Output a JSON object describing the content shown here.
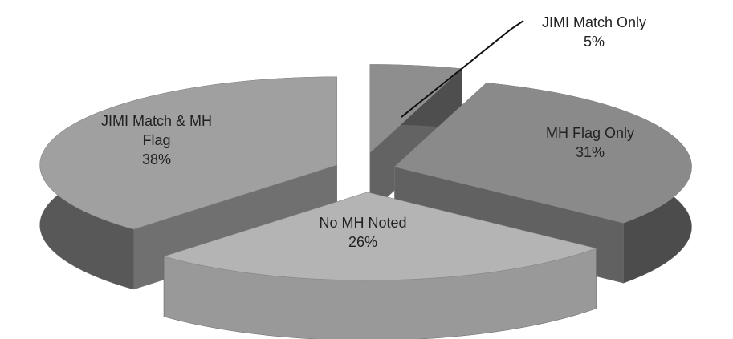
{
  "chart_data": {
    "type": "pie3d",
    "categories": [
      "JIMI Match Only",
      "MH Flag Only",
      "No MH Noted",
      "JIMI Match & MH Flag"
    ],
    "values": [
      5,
      31,
      26,
      38
    ],
    "value_labels": [
      "5%",
      "31%",
      "26%",
      "38%"
    ],
    "colors": [
      "#8e8e8e",
      "#8a8a8a",
      "#b4b4b4",
      "#a0a0a0"
    ]
  }
}
